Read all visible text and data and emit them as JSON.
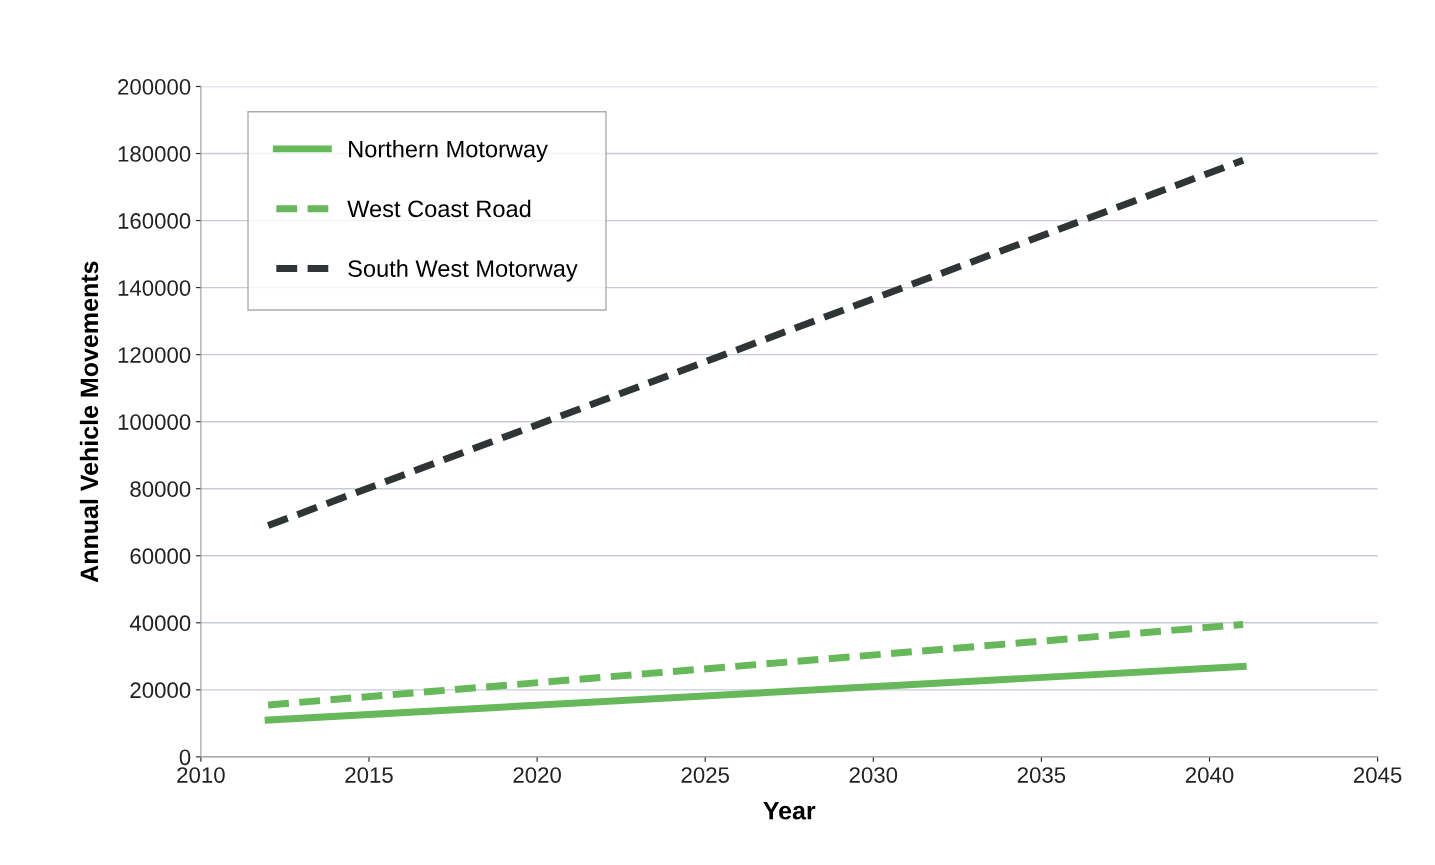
{
  "chart_data": {
    "type": "line",
    "xlabel": "Year",
    "ylabel": "Annual Vehicle Movements",
    "xlim": [
      2010,
      2045
    ],
    "xticks": [
      2010,
      2015,
      2020,
      2025,
      2030,
      2035,
      2040,
      2045
    ],
    "ylim": [
      0,
      200000
    ],
    "yticks": [
      0,
      20000,
      40000,
      60000,
      80000,
      100000,
      120000,
      140000,
      160000,
      180000,
      200000
    ],
    "grid": "y",
    "legend": "top left",
    "x": [
      2012,
      2041
    ],
    "series": [
      {
        "name": "Northern Motorway",
        "color": "#66b85a",
        "line_style": "solid",
        "values": [
          11000,
          27000
        ]
      },
      {
        "name": "West Coast Road",
        "color": "#66b85a",
        "line_style": "dashed",
        "values": [
          15500,
          39500
        ]
      },
      {
        "name": "South West Motorway",
        "color": "#2f3535",
        "line_style": "dashed",
        "values": [
          69000,
          178000
        ]
      }
    ]
  }
}
